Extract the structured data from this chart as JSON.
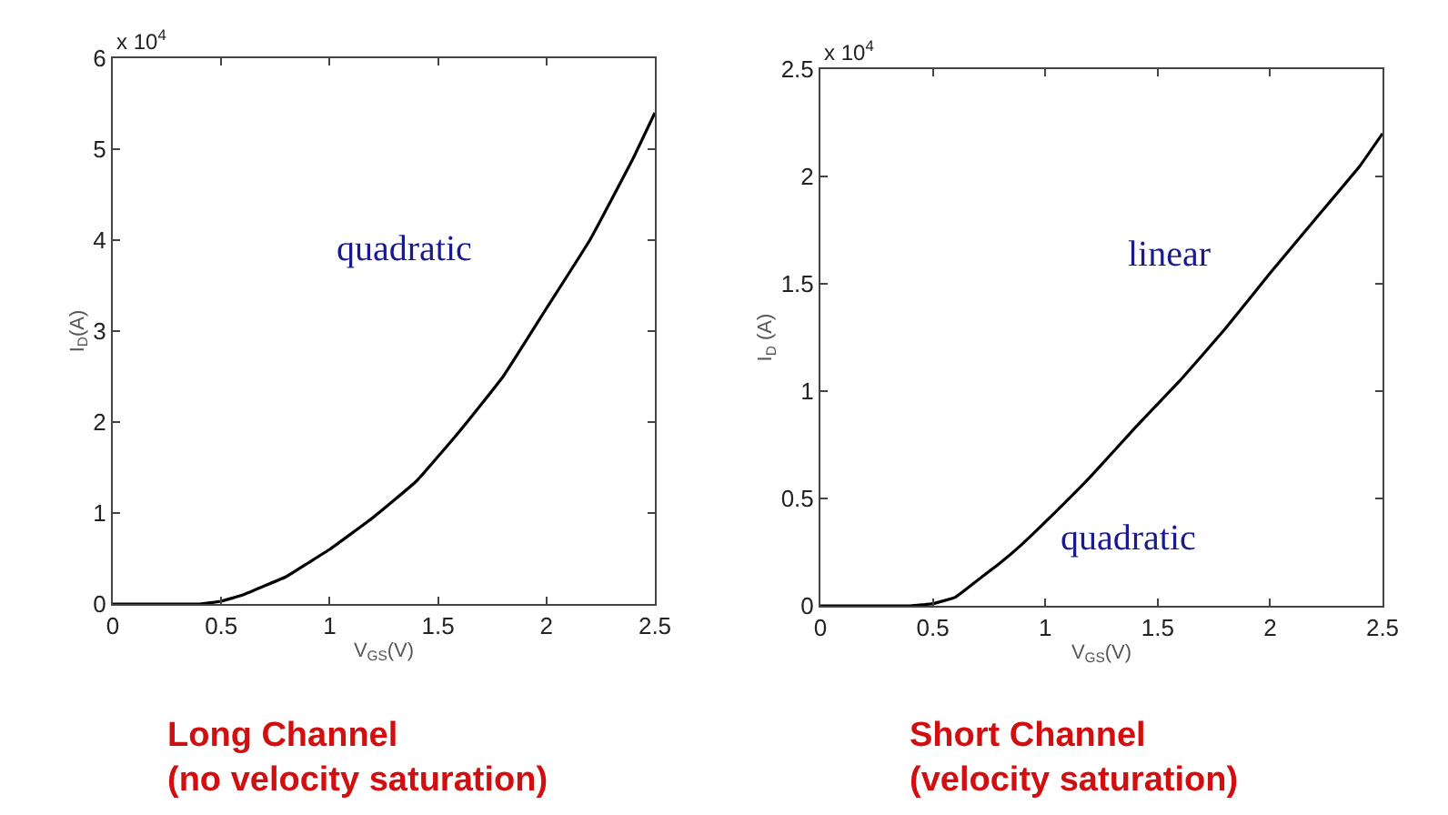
{
  "chart_data": [
    {
      "type": "line",
      "title": "Long Channel\n(no velocity saturation)",
      "xlabel": "V$_{GS}$(V)",
      "ylabel": "I$_{D}$(A)",
      "x": [
        0,
        0.4,
        0.5,
        0.6,
        0.7,
        0.8,
        0.9,
        1.0,
        1.2,
        1.4,
        1.6,
        1.8,
        2.0,
        2.2,
        2.4,
        2.5
      ],
      "series": [
        {
          "color": "#000000",
          "values": [
            0,
            0,
            0.03,
            0.1,
            0.2,
            0.3,
            0.45,
            0.6,
            0.95,
            1.35,
            1.9,
            2.5,
            3.25,
            4.0,
            4.9,
            5.4
          ]
        }
      ],
      "xlim": [
        0,
        2.5
      ],
      "xticks": [
        0,
        0.5,
        1,
        1.5,
        2,
        2.5
      ],
      "ylim": [
        0,
        6
      ],
      "yticks": [
        0,
        1,
        2,
        3,
        4,
        5,
        6
      ],
      "grid": false,
      "annotations": [
        "x 10$^{4}$",
        "quadratic"
      ]
    },
    {
      "type": "line",
      "title": "Short Channel\n(velocity saturation)",
      "xlabel": "V$_{GS}$(V)",
      "ylabel": "I$_{D}$ (A)",
      "x": [
        0,
        0.4,
        0.5,
        0.6,
        0.7,
        0.8,
        0.9,
        1.0,
        1.2,
        1.4,
        1.6,
        1.8,
        2.0,
        2.2,
        2.4,
        2.5
      ],
      "series": [
        {
          "color": "#000000",
          "values": [
            0,
            0,
            0.01,
            0.04,
            0.12,
            0.2,
            0.29,
            0.39,
            0.6,
            0.83,
            1.05,
            1.29,
            1.55,
            1.8,
            2.05,
            2.2
          ]
        }
      ],
      "xlim": [
        0,
        2.5
      ],
      "xticks": [
        0,
        0.5,
        1,
        1.5,
        2,
        2.5
      ],
      "ylim": [
        0,
        2.5
      ],
      "yticks": [
        0,
        0.5,
        1,
        1.5,
        2,
        2.5
      ],
      "grid": false,
      "annotations": [
        "x 10$^{4}$",
        "linear",
        "quadratic"
      ]
    }
  ]
}
